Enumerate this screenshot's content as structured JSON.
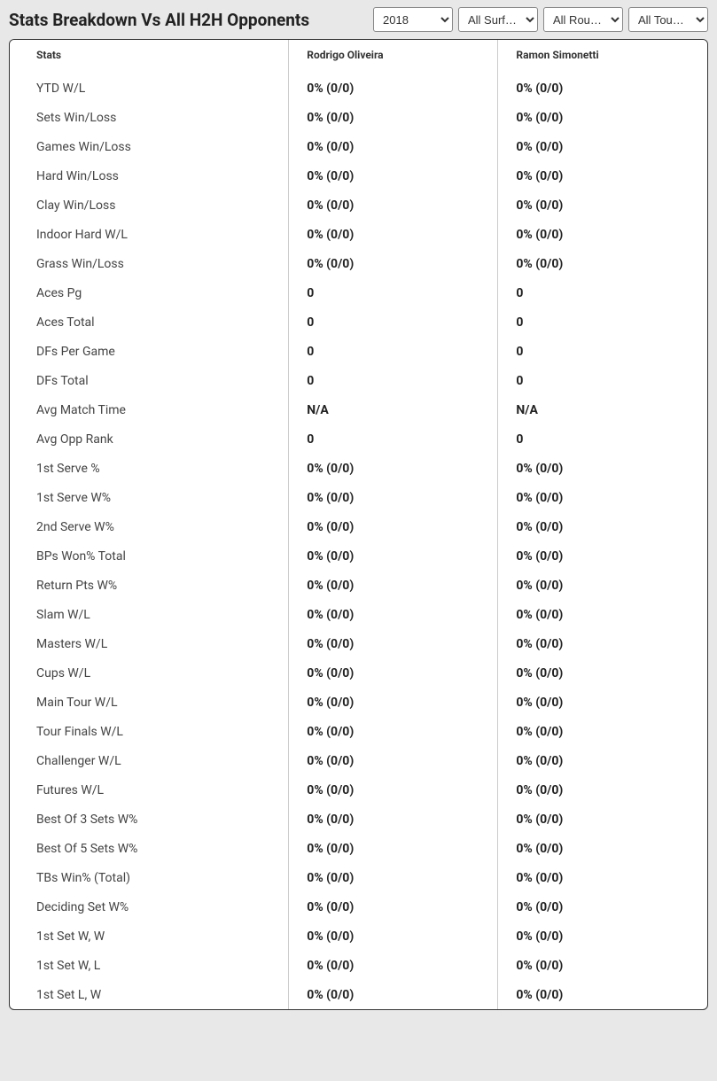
{
  "title": "Stats Breakdown Vs All H2H Opponents",
  "filters": {
    "year": {
      "selected": "2018",
      "options": [
        "2018"
      ]
    },
    "surface": {
      "selected": "All Surf…",
      "options": [
        "All Surf…"
      ]
    },
    "round": {
      "selected": "All Rou…",
      "options": [
        "All Rou…"
      ]
    },
    "tour": {
      "selected": "All Tour…",
      "options": [
        "All Tour…"
      ]
    }
  },
  "columns": {
    "stats": "Stats",
    "player1": "Rodrigo Oliveira",
    "player2": "Ramon Simonetti"
  },
  "rows": [
    {
      "label": "YTD W/L",
      "p1": "0% (0/0)",
      "p2": "0% (0/0)"
    },
    {
      "label": "Sets Win/Loss",
      "p1": "0% (0/0)",
      "p2": "0% (0/0)"
    },
    {
      "label": "Games Win/Loss",
      "p1": "0% (0/0)",
      "p2": "0% (0/0)"
    },
    {
      "label": "Hard Win/Loss",
      "p1": "0% (0/0)",
      "p2": "0% (0/0)"
    },
    {
      "label": "Clay Win/Loss",
      "p1": "0% (0/0)",
      "p2": "0% (0/0)"
    },
    {
      "label": "Indoor Hard W/L",
      "p1": "0% (0/0)",
      "p2": "0% (0/0)"
    },
    {
      "label": "Grass Win/Loss",
      "p1": "0% (0/0)",
      "p2": "0% (0/0)"
    },
    {
      "label": "Aces Pg",
      "p1": "0",
      "p2": "0"
    },
    {
      "label": "Aces Total",
      "p1": "0",
      "p2": "0"
    },
    {
      "label": "DFs Per Game",
      "p1": "0",
      "p2": "0"
    },
    {
      "label": "DFs Total",
      "p1": "0",
      "p2": "0"
    },
    {
      "label": "Avg Match Time",
      "p1": "N/A",
      "p2": "N/A"
    },
    {
      "label": "Avg Opp Rank",
      "p1": "0",
      "p2": "0"
    },
    {
      "label": "1st Serve %",
      "p1": "0% (0/0)",
      "p2": "0% (0/0)"
    },
    {
      "label": "1st Serve W%",
      "p1": "0% (0/0)",
      "p2": "0% (0/0)"
    },
    {
      "label": "2nd Serve W%",
      "p1": "0% (0/0)",
      "p2": "0% (0/0)"
    },
    {
      "label": "BPs Won% Total",
      "p1": "0% (0/0)",
      "p2": "0% (0/0)"
    },
    {
      "label": "Return Pts W%",
      "p1": "0% (0/0)",
      "p2": "0% (0/0)"
    },
    {
      "label": "Slam W/L",
      "p1": "0% (0/0)",
      "p2": "0% (0/0)"
    },
    {
      "label": "Masters W/L",
      "p1": "0% (0/0)",
      "p2": "0% (0/0)"
    },
    {
      "label": "Cups W/L",
      "p1": "0% (0/0)",
      "p2": "0% (0/0)"
    },
    {
      "label": "Main Tour W/L",
      "p1": "0% (0/0)",
      "p2": "0% (0/0)"
    },
    {
      "label": "Tour Finals W/L",
      "p1": "0% (0/0)",
      "p2": "0% (0/0)"
    },
    {
      "label": "Challenger W/L",
      "p1": "0% (0/0)",
      "p2": "0% (0/0)"
    },
    {
      "label": "Futures W/L",
      "p1": "0% (0/0)",
      "p2": "0% (0/0)"
    },
    {
      "label": "Best Of 3 Sets W%",
      "p1": "0% (0/0)",
      "p2": "0% (0/0)"
    },
    {
      "label": "Best Of 5 Sets W%",
      "p1": "0% (0/0)",
      "p2": "0% (0/0)"
    },
    {
      "label": "TBs Win% (Total)",
      "p1": "0% (0/0)",
      "p2": "0% (0/0)"
    },
    {
      "label": "Deciding Set W%",
      "p1": "0% (0/0)",
      "p2": "0% (0/0)"
    },
    {
      "label": "1st Set W, W",
      "p1": "0% (0/0)",
      "p2": "0% (0/0)"
    },
    {
      "label": "1st Set W, L",
      "p1": "0% (0/0)",
      "p2": "0% (0/0)"
    },
    {
      "label": "1st Set L, W",
      "p1": "0% (0/0)",
      "p2": "0% (0/0)"
    }
  ]
}
